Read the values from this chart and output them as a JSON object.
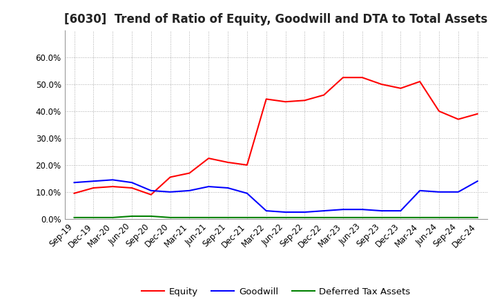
{
  "title": "[6030]  Trend of Ratio of Equity, Goodwill and DTA to Total Assets",
  "x_labels": [
    "Sep-19",
    "Dec-19",
    "Mar-20",
    "Jun-20",
    "Sep-20",
    "Dec-20",
    "Mar-21",
    "Jun-21",
    "Sep-21",
    "Dec-21",
    "Mar-22",
    "Jun-22",
    "Sep-22",
    "Dec-22",
    "Mar-23",
    "Jun-23",
    "Sep-23",
    "Dec-23",
    "Mar-24",
    "Jun-24",
    "Sep-24",
    "Dec-24"
  ],
  "equity": [
    9.5,
    11.5,
    12.0,
    11.5,
    9.0,
    15.5,
    17.0,
    22.5,
    21.0,
    20.0,
    44.5,
    43.5,
    44.0,
    46.0,
    52.5,
    52.5,
    50.0,
    48.5,
    51.0,
    40.0,
    37.0,
    39.0
  ],
  "goodwill": [
    13.5,
    14.0,
    14.5,
    13.5,
    10.5,
    10.0,
    10.5,
    12.0,
    11.5,
    9.5,
    3.0,
    2.5,
    2.5,
    3.0,
    3.5,
    3.5,
    3.0,
    3.0,
    10.5,
    10.0,
    10.0,
    14.0
  ],
  "dta": [
    0.5,
    0.5,
    0.5,
    1.0,
    1.0,
    0.5,
    0.5,
    0.5,
    0.5,
    0.5,
    0.5,
    0.5,
    0.5,
    0.5,
    0.5,
    0.5,
    0.5,
    0.5,
    0.5,
    0.5,
    0.5,
    0.5
  ],
  "equity_color": "#ff0000",
  "goodwill_color": "#0000ff",
  "dta_color": "#008000",
  "ylim": [
    0,
    70
  ],
  "yticks": [
    0,
    10,
    20,
    30,
    40,
    50,
    60
  ],
  "background_color": "#ffffff",
  "grid_color": "#aaaaaa",
  "legend_entries": [
    "Equity",
    "Goodwill",
    "Deferred Tax Assets"
  ],
  "title_fontsize": 12,
  "axis_fontsize": 8.5,
  "legend_fontsize": 9.5
}
